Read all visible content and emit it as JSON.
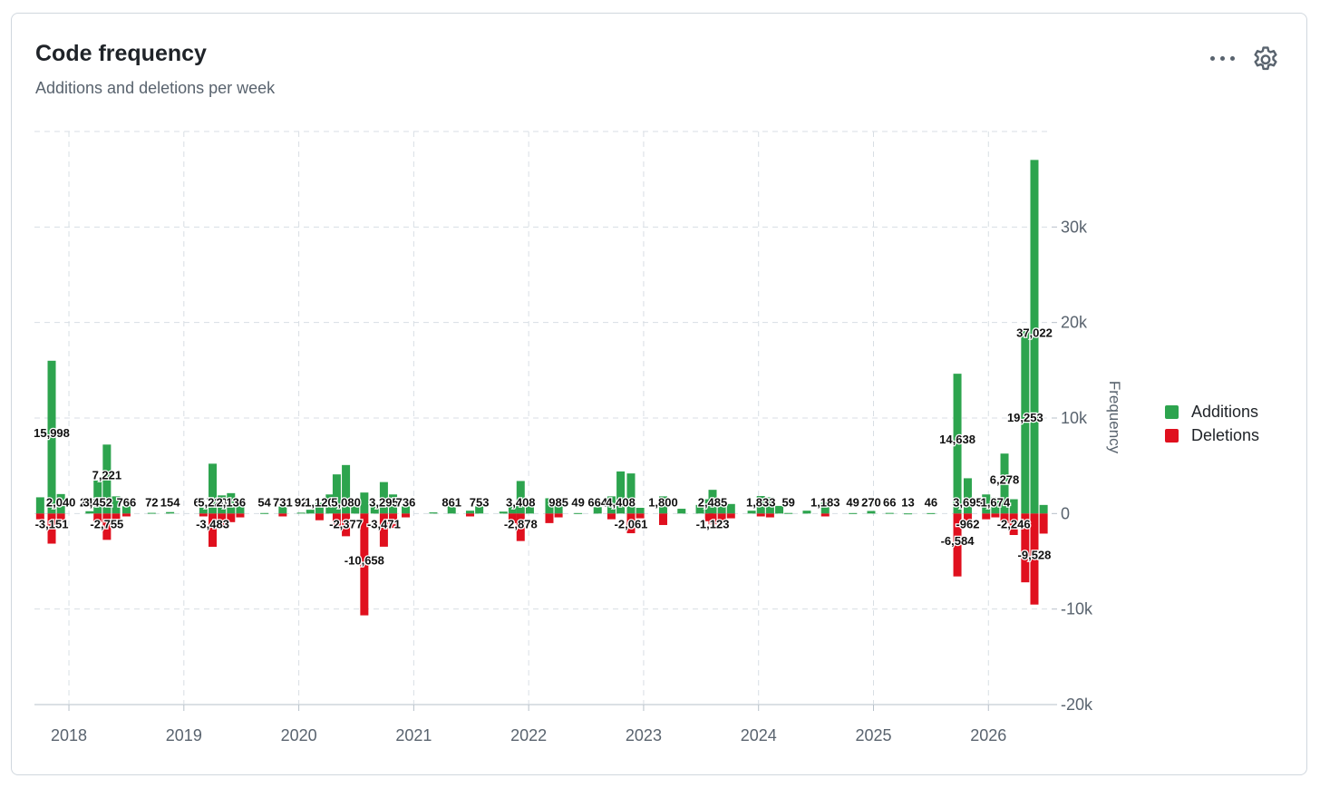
{
  "card": {
    "title": "Code frequency",
    "subtitle": "Additions and deletions per week"
  },
  "icons": {
    "menu": "kebab-horizontal-icon",
    "settings": "gear-icon"
  },
  "legend": [
    {
      "label": "Additions",
      "color": "#2da44e"
    },
    {
      "label": "Deletions",
      "color": "#e0101e"
    }
  ],
  "chart_data": {
    "type": "bar",
    "ylabel": "Frequency",
    "ylim": [
      -20000,
      40000
    ],
    "yticks": [
      {
        "value": 30000,
        "label": "30k"
      },
      {
        "value": 20000,
        "label": "20k"
      },
      {
        "value": 10000,
        "label": "10k"
      },
      {
        "value": 0,
        "label": "0"
      },
      {
        "value": -10000,
        "label": "-10k"
      },
      {
        "value": -20000,
        "label": "-20k"
      }
    ],
    "xlim": [
      2017.7,
      2026.55
    ],
    "xticks": [
      2018,
      2019,
      2020,
      2021,
      2022,
      2023,
      2024,
      2025,
      2026
    ],
    "legend_position": "right",
    "grid": true,
    "series": [
      {
        "name": "Additions",
        "color": "#2da44e",
        "points": [
          {
            "x": 2017.75,
            "y": 1700
          },
          {
            "x": 2017.85,
            "y": 15998,
            "label": "15,998"
          },
          {
            "x": 2017.93,
            "y": 2040,
            "label": "2,040"
          },
          {
            "x": 2018.18,
            "y": 243,
            "label": "243"
          },
          {
            "x": 2018.25,
            "y": 3452,
            "label": "3,452"
          },
          {
            "x": 2018.33,
            "y": 7221,
            "label": "7,221"
          },
          {
            "x": 2018.41,
            "y": 1800
          },
          {
            "x": 2018.5,
            "y": 766,
            "label": "766"
          },
          {
            "x": 2018.72,
            "y": 72,
            "label": "72"
          },
          {
            "x": 2018.88,
            "y": 154,
            "label": "154"
          },
          {
            "x": 2019.17,
            "y": 617,
            "label": "617"
          },
          {
            "x": 2019.25,
            "y": 5220,
            "label": "5,220"
          },
          {
            "x": 2019.33,
            "y": 1900
          },
          {
            "x": 2019.41,
            "y": 2136,
            "label": "2,136"
          },
          {
            "x": 2019.49,
            "y": 1200
          },
          {
            "x": 2019.7,
            "y": 54,
            "label": "54"
          },
          {
            "x": 2019.86,
            "y": 731,
            "label": "731"
          },
          {
            "x": 2020.02,
            "y": 92,
            "label": "92"
          },
          {
            "x": 2020.1,
            "y": 400
          },
          {
            "x": 2020.18,
            "y": 1120,
            "label": "1,120"
          },
          {
            "x": 2020.27,
            "y": 2000
          },
          {
            "x": 2020.33,
            "y": 4100
          },
          {
            "x": 2020.41,
            "y": 5080,
            "label": "5,080"
          },
          {
            "x": 2020.49,
            "y": 800
          },
          {
            "x": 2020.57,
            "y": 2200
          },
          {
            "x": 2020.66,
            "y": 900
          },
          {
            "x": 2020.74,
            "y": 3295,
            "label": "3,295"
          },
          {
            "x": 2020.82,
            "y": 2000
          },
          {
            "x": 2020.93,
            "y": 736,
            "label": "736"
          },
          {
            "x": 2021.17,
            "y": 120
          },
          {
            "x": 2021.33,
            "y": 861,
            "label": "861"
          },
          {
            "x": 2021.49,
            "y": 300
          },
          {
            "x": 2021.57,
            "y": 753,
            "label": "753"
          },
          {
            "x": 2021.78,
            "y": 200
          },
          {
            "x": 2021.86,
            "y": 900
          },
          {
            "x": 2021.93,
            "y": 3408,
            "label": "3,408"
          },
          {
            "x": 2022.01,
            "y": 900
          },
          {
            "x": 2022.18,
            "y": 1600
          },
          {
            "x": 2022.26,
            "y": 985,
            "label": "985"
          },
          {
            "x": 2022.43,
            "y": 49,
            "label": "49"
          },
          {
            "x": 2022.6,
            "y": 664,
            "label": "664"
          },
          {
            "x": 2022.72,
            "y": 1800
          },
          {
            "x": 2022.8,
            "y": 4408,
            "label": "4,408"
          },
          {
            "x": 2022.89,
            "y": 4200
          },
          {
            "x": 2022.97,
            "y": 600
          },
          {
            "x": 2023.17,
            "y": 1800,
            "label": "1,800"
          },
          {
            "x": 2023.33,
            "y": 500
          },
          {
            "x": 2023.49,
            "y": 900
          },
          {
            "x": 2023.57,
            "y": 1500
          },
          {
            "x": 2023.6,
            "y": 2485,
            "label": "2,485"
          },
          {
            "x": 2023.68,
            "y": 1300
          },
          {
            "x": 2023.76,
            "y": 1000
          },
          {
            "x": 2023.94,
            "y": 300
          },
          {
            "x": 2024.02,
            "y": 1833,
            "label": "1,833"
          },
          {
            "x": 2024.1,
            "y": 1700
          },
          {
            "x": 2024.18,
            "y": 800
          },
          {
            "x": 2024.26,
            "y": 59,
            "label": "59"
          },
          {
            "x": 2024.42,
            "y": 300
          },
          {
            "x": 2024.58,
            "y": 1183,
            "label": "1,183"
          },
          {
            "x": 2024.82,
            "y": 49,
            "label": "49"
          },
          {
            "x": 2024.98,
            "y": 270,
            "label": "270"
          },
          {
            "x": 2025.14,
            "y": 66,
            "label": "66"
          },
          {
            "x": 2025.3,
            "y": 13,
            "label": "13"
          },
          {
            "x": 2025.5,
            "y": 46,
            "label": "46"
          },
          {
            "x": 2025.73,
            "y": 14638,
            "label": "14,638"
          },
          {
            "x": 2025.82,
            "y": 3695,
            "label": "3,695"
          },
          {
            "x": 2025.98,
            "y": 2000
          },
          {
            "x": 2026.06,
            "y": 1674,
            "label": "1,674"
          },
          {
            "x": 2026.14,
            "y": 6278,
            "label": "6,278"
          },
          {
            "x": 2026.22,
            "y": 1500
          },
          {
            "x": 2026.32,
            "y": 19253,
            "label": "19,253"
          },
          {
            "x": 2026.4,
            "y": 37022,
            "label": "37,022"
          },
          {
            "x": 2026.48,
            "y": 900
          }
        ]
      },
      {
        "name": "Deletions",
        "color": "#e0101e",
        "points": [
          {
            "x": 2017.75,
            "y": -600
          },
          {
            "x": 2017.85,
            "y": -3151,
            "label": "-3,151"
          },
          {
            "x": 2017.93,
            "y": -700
          },
          {
            "x": 2018.25,
            "y": -900
          },
          {
            "x": 2018.33,
            "y": -2755,
            "label": "-2,755"
          },
          {
            "x": 2018.41,
            "y": -700
          },
          {
            "x": 2018.5,
            "y": -300
          },
          {
            "x": 2019.17,
            "y": -300
          },
          {
            "x": 2019.25,
            "y": -3483,
            "label": "-3,483"
          },
          {
            "x": 2019.33,
            "y": -1400
          },
          {
            "x": 2019.41,
            "y": -900
          },
          {
            "x": 2019.49,
            "y": -400
          },
          {
            "x": 2019.86,
            "y": -300
          },
          {
            "x": 2020.18,
            "y": -700
          },
          {
            "x": 2020.33,
            "y": -1400
          },
          {
            "x": 2020.41,
            "y": -2377,
            "label": "-2,377"
          },
          {
            "x": 2020.57,
            "y": -10658,
            "label": "-10,658"
          },
          {
            "x": 2020.74,
            "y": -3471,
            "label": "-3,471"
          },
          {
            "x": 2020.82,
            "y": -1500
          },
          {
            "x": 2020.93,
            "y": -400
          },
          {
            "x": 2021.49,
            "y": -300
          },
          {
            "x": 2021.86,
            "y": -1000
          },
          {
            "x": 2021.93,
            "y": -2878,
            "label": "-2,878"
          },
          {
            "x": 2022.18,
            "y": -1000
          },
          {
            "x": 2022.26,
            "y": -400
          },
          {
            "x": 2022.72,
            "y": -600
          },
          {
            "x": 2022.89,
            "y": -2061,
            "label": "-2,061"
          },
          {
            "x": 2022.97,
            "y": -500
          },
          {
            "x": 2023.17,
            "y": -1200
          },
          {
            "x": 2023.57,
            "y": -800
          },
          {
            "x": 2023.6,
            "y": -1123,
            "label": "-1,123"
          },
          {
            "x": 2023.68,
            "y": -700
          },
          {
            "x": 2023.76,
            "y": -500
          },
          {
            "x": 2024.02,
            "y": -300
          },
          {
            "x": 2024.1,
            "y": -400
          },
          {
            "x": 2024.58,
            "y": -300
          },
          {
            "x": 2025.73,
            "y": -6584,
            "label": "-6,584"
          },
          {
            "x": 2025.82,
            "y": -962,
            "label": "-962"
          },
          {
            "x": 2025.98,
            "y": -600
          },
          {
            "x": 2026.06,
            "y": -400
          },
          {
            "x": 2026.14,
            "y": -1000
          },
          {
            "x": 2026.22,
            "y": -2246,
            "label": "-2,246"
          },
          {
            "x": 2026.32,
            "y": -7200
          },
          {
            "x": 2026.4,
            "y": -9528,
            "label": "-9,528"
          },
          {
            "x": 2026.48,
            "y": -2100
          }
        ]
      }
    ]
  }
}
